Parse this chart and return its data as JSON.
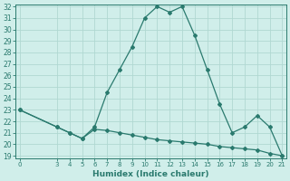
{
  "xlabel": "Humidex (Indice chaleur)",
  "x_hours": [
    0,
    3,
    4,
    5,
    6,
    7,
    8,
    9,
    10,
    11,
    12,
    13,
    14,
    15,
    16,
    17,
    18,
    19,
    20,
    21
  ],
  "humidex_values": [
    23,
    21.5,
    21,
    20.5,
    21.5,
    24.5,
    26.5,
    28.5,
    31,
    32,
    31.5,
    32,
    29.5,
    26.5,
    23.5,
    21,
    21.5,
    22.5,
    21.5,
    19
  ],
  "flat_values": [
    23,
    21.5,
    21,
    20.5,
    21.3,
    21.2,
    21.0,
    20.8,
    20.6,
    20.4,
    20.3,
    20.2,
    20.1,
    20.0,
    19.8,
    19.7,
    19.6,
    19.5,
    19.2,
    19
  ],
  "line_color": "#2a7a6e",
  "bg_color": "#d0eeea",
  "grid_color": "#b0d8d2",
  "axis_color": "#2a7a6e",
  "ylim_min": 19,
  "ylim_max": 32,
  "yticks": [
    19,
    20,
    21,
    22,
    23,
    24,
    25,
    26,
    27,
    28,
    29,
    30,
    31,
    32
  ],
  "xticks": [
    0,
    3,
    4,
    5,
    6,
    7,
    8,
    9,
    10,
    11,
    12,
    13,
    14,
    15,
    16,
    17,
    18,
    19,
    20,
    21
  ],
  "xlim_min": -0.3,
  "xlim_max": 21.3,
  "marker": "D",
  "marker_size": 2.0,
  "line_width": 0.9,
  "tick_fontsize": 5.5,
  "xlabel_fontsize": 6.5
}
